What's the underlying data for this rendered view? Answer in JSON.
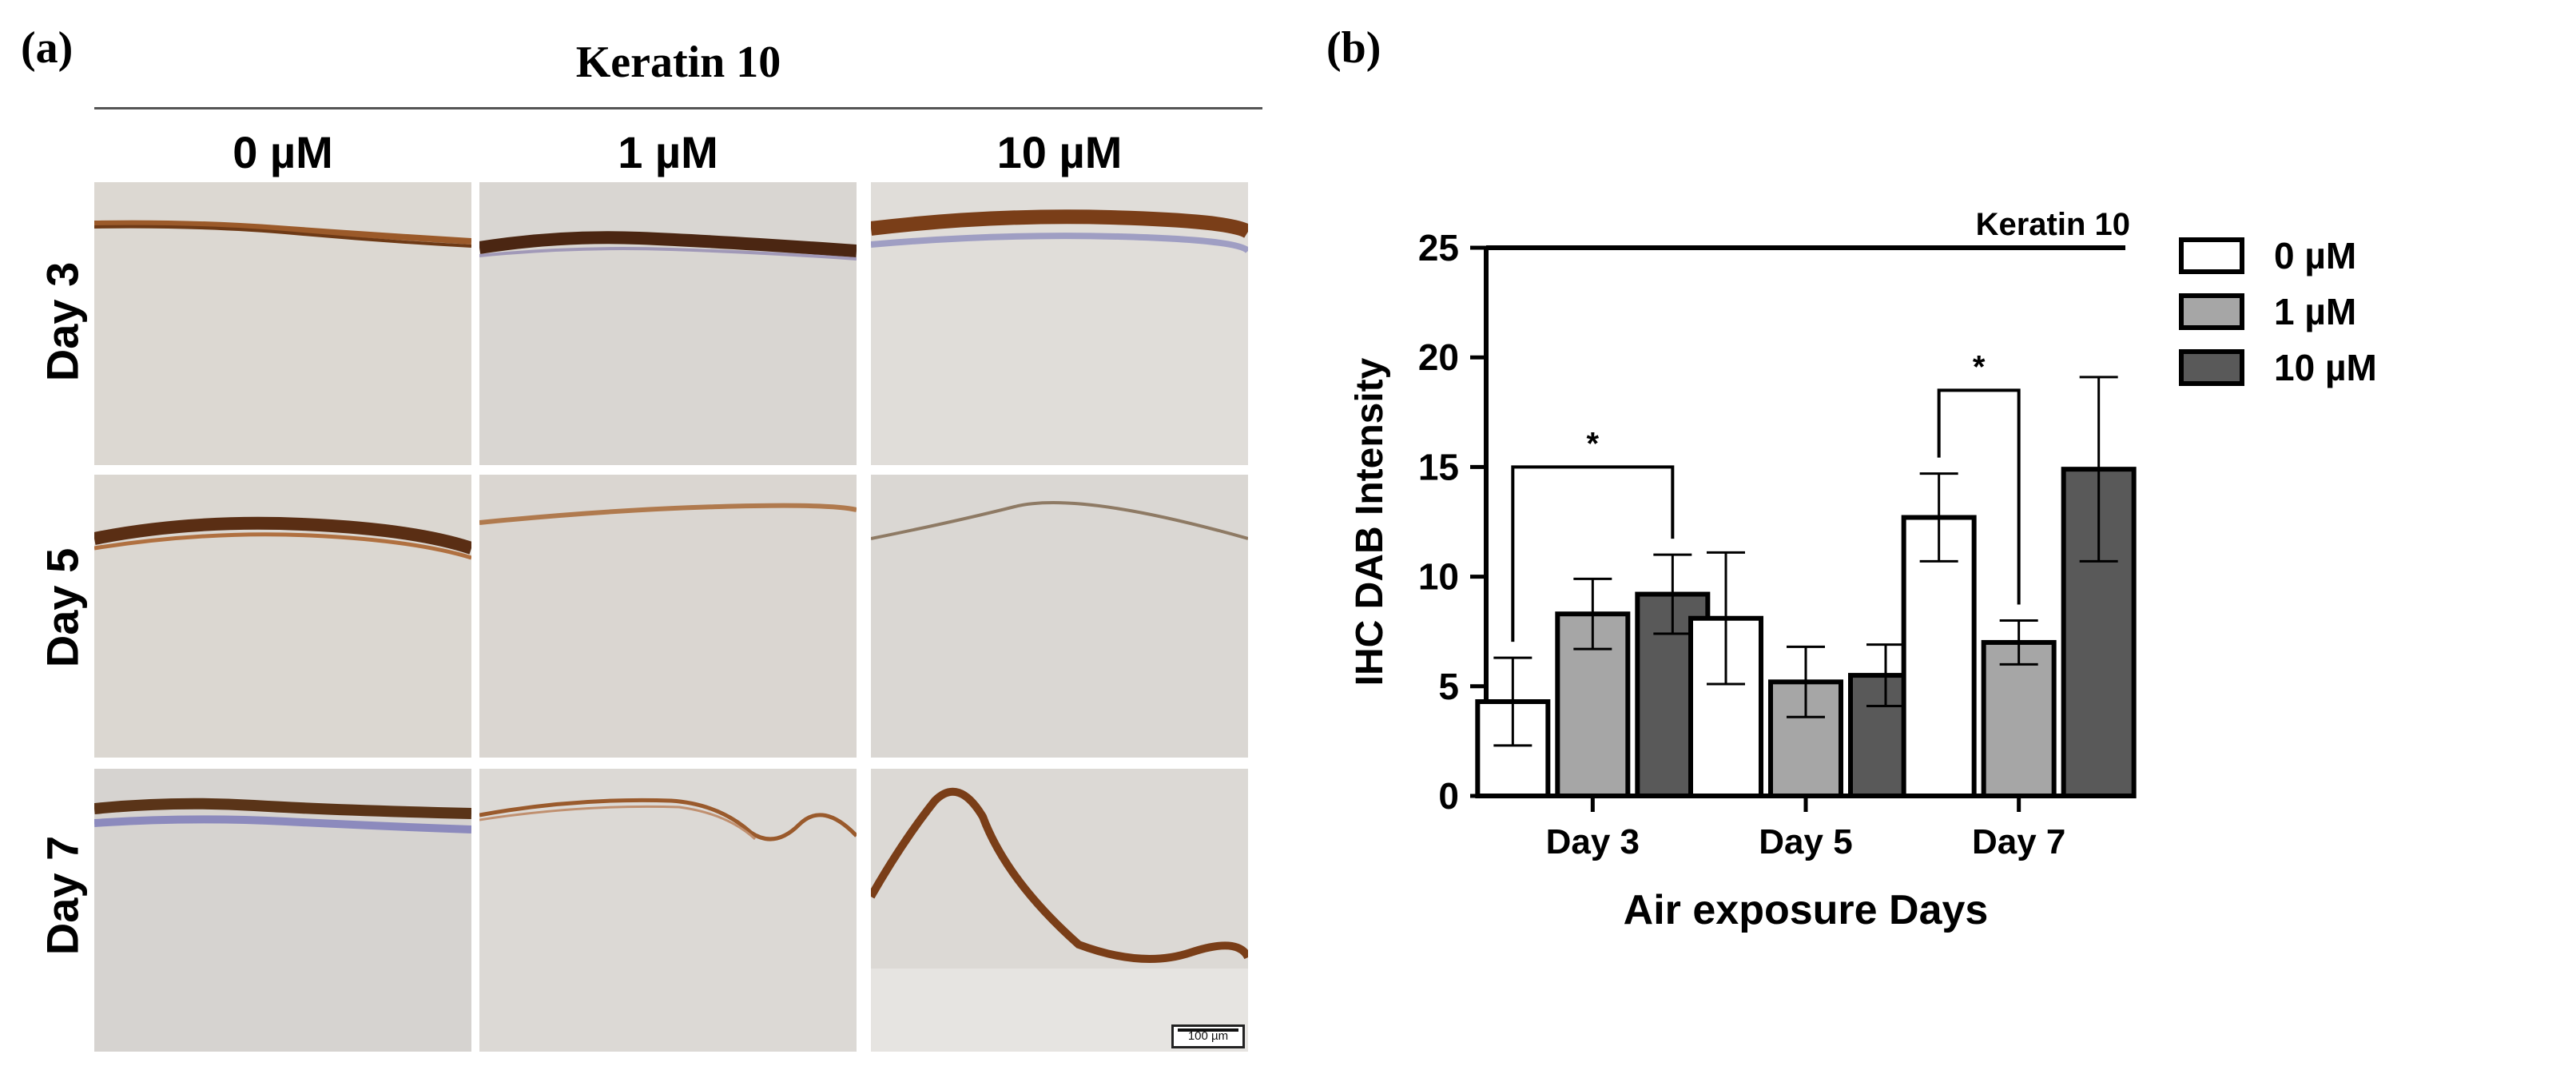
{
  "panel_a": {
    "label": "(a)",
    "title": "Keratin 10",
    "columns": [
      "0 µM",
      "1 µM",
      "10 µM"
    ],
    "rows": [
      "Day 3",
      "Day 5",
      "Day 7"
    ],
    "scale_bar": "100 µm"
  },
  "panel_b": {
    "label": "(b)"
  },
  "chart_data": {
    "type": "bar",
    "title": "Keratin 10",
    "xlabel": "Air exposure Days",
    "ylabel": "IHC DAB Intensity",
    "categories": [
      "Day 3",
      "Day 5",
      "Day 7"
    ],
    "ylim": [
      0,
      25
    ],
    "yticks": [
      0,
      5,
      10,
      15,
      20,
      25
    ],
    "legend_position": "right",
    "series": [
      {
        "name": "0 µM",
        "color": "#ffffff",
        "values": [
          4.3,
          8.1,
          12.7
        ],
        "errors": [
          2.0,
          3.0,
          2.0
        ]
      },
      {
        "name": "1 µM",
        "color": "#a6a6a6",
        "values": [
          8.3,
          5.2,
          7.0
        ],
        "errors": [
          1.6,
          1.6,
          1.0
        ]
      },
      {
        "name": "10 µM",
        "color": "#595959",
        "values": [
          9.2,
          5.5,
          14.9
        ],
        "errors": [
          1.8,
          1.4,
          4.2
        ]
      }
    ],
    "significance": [
      {
        "category": "Day 3",
        "from_series": 0,
        "to_series": 2,
        "label": "*",
        "y": 15.0
      },
      {
        "category": "Day 7",
        "from_series": 0,
        "to_series": 1,
        "label": "*",
        "y": 18.5
      }
    ]
  }
}
